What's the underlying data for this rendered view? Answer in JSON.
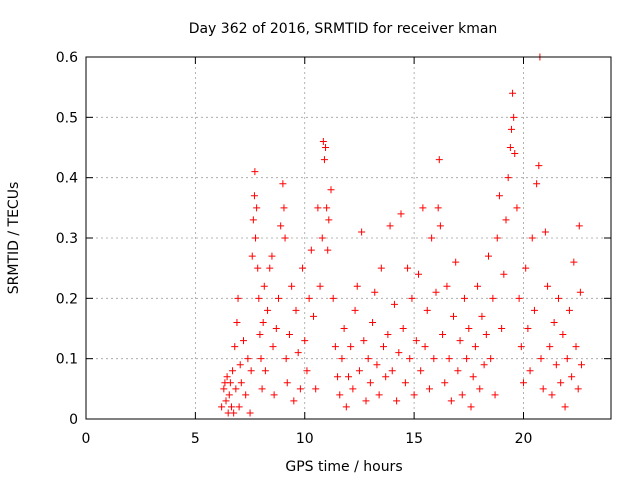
{
  "chart_data": {
    "type": "scatter",
    "title": "Day 362 of 2016, SRMTID for receiver kman",
    "xlabel": "GPS time / hours",
    "ylabel": "SRMTID / TECUs",
    "xlim": [
      0,
      24
    ],
    "ylim": [
      0,
      0.6
    ],
    "xticks": [
      0,
      5,
      10,
      15,
      20
    ],
    "yticks": [
      0,
      0.1,
      0.2,
      0.3,
      0.4,
      0.5,
      0.6
    ],
    "xtick_labels": [
      "0",
      "5",
      "10",
      "15",
      "20"
    ],
    "ytick_labels": [
      "0",
      "0.1",
      "0.2",
      "0.3",
      "0.4",
      "0.5",
      "0.6"
    ],
    "grid": true,
    "marker": "+",
    "color": "#ff0000",
    "series": [
      {
        "points": [
          [
            6.2,
            0.02
          ],
          [
            6.3,
            0.05
          ],
          [
            6.35,
            0.06
          ],
          [
            6.4,
            0.03
          ],
          [
            6.45,
            0.07
          ],
          [
            6.5,
            0.01
          ],
          [
            6.55,
            0.04
          ],
          [
            6.6,
            0.06
          ],
          [
            6.65,
            0.02
          ],
          [
            6.7,
            0.08
          ],
          [
            6.75,
            0.01
          ],
          [
            6.8,
            0.12
          ],
          [
            6.85,
            0.05
          ],
          [
            6.9,
            0.16
          ],
          [
            6.95,
            0.2
          ],
          [
            7.0,
            0.02
          ],
          [
            7.05,
            0.09
          ],
          [
            7.1,
            0.06
          ],
          [
            7.2,
            0.13
          ],
          [
            7.3,
            0.04
          ],
          [
            7.4,
            0.1
          ],
          [
            7.5,
            0.01
          ],
          [
            7.55,
            0.08
          ],
          [
            7.6,
            0.27
          ],
          [
            7.65,
            0.33
          ],
          [
            7.7,
            0.37
          ],
          [
            7.72,
            0.41
          ],
          [
            7.75,
            0.3
          ],
          [
            7.8,
            0.35
          ],
          [
            7.85,
            0.25
          ],
          [
            7.9,
            0.2
          ],
          [
            7.95,
            0.14
          ],
          [
            8.0,
            0.1
          ],
          [
            8.05,
            0.05
          ],
          [
            8.1,
            0.16
          ],
          [
            8.15,
            0.22
          ],
          [
            8.2,
            0.08
          ],
          [
            8.3,
            0.18
          ],
          [
            8.4,
            0.25
          ],
          [
            8.5,
            0.27
          ],
          [
            8.55,
            0.12
          ],
          [
            8.6,
            0.04
          ],
          [
            8.7,
            0.15
          ],
          [
            8.8,
            0.2
          ],
          [
            8.9,
            0.32
          ],
          [
            9.0,
            0.39
          ],
          [
            9.05,
            0.35
          ],
          [
            9.1,
            0.3
          ],
          [
            9.15,
            0.1
          ],
          [
            9.2,
            0.06
          ],
          [
            9.3,
            0.14
          ],
          [
            9.4,
            0.22
          ],
          [
            9.5,
            0.03
          ],
          [
            9.6,
            0.18
          ],
          [
            9.7,
            0.11
          ],
          [
            9.8,
            0.05
          ],
          [
            9.9,
            0.25
          ],
          [
            10.0,
            0.13
          ],
          [
            10.1,
            0.08
          ],
          [
            10.2,
            0.2
          ],
          [
            10.3,
            0.28
          ],
          [
            10.4,
            0.17
          ],
          [
            10.5,
            0.05
          ],
          [
            10.6,
            0.35
          ],
          [
            10.7,
            0.22
          ],
          [
            10.8,
            0.3
          ],
          [
            10.85,
            0.46
          ],
          [
            10.9,
            0.43
          ],
          [
            10.95,
            0.45
          ],
          [
            11.0,
            0.35
          ],
          [
            11.05,
            0.28
          ],
          [
            11.1,
            0.33
          ],
          [
            11.2,
            0.38
          ],
          [
            11.3,
            0.2
          ],
          [
            11.4,
            0.12
          ],
          [
            11.5,
            0.07
          ],
          [
            11.6,
            0.04
          ],
          [
            11.7,
            0.1
          ],
          [
            11.8,
            0.15
          ],
          [
            11.9,
            0.02
          ],
          [
            12.0,
            0.07
          ],
          [
            12.1,
            0.12
          ],
          [
            12.2,
            0.05
          ],
          [
            12.3,
            0.18
          ],
          [
            12.4,
            0.22
          ],
          [
            12.5,
            0.08
          ],
          [
            12.6,
            0.31
          ],
          [
            12.7,
            0.13
          ],
          [
            12.8,
            0.03
          ],
          [
            12.9,
            0.1
          ],
          [
            13.0,
            0.06
          ],
          [
            13.1,
            0.16
          ],
          [
            13.2,
            0.21
          ],
          [
            13.3,
            0.09
          ],
          [
            13.4,
            0.04
          ],
          [
            13.5,
            0.25
          ],
          [
            13.6,
            0.12
          ],
          [
            13.7,
            0.07
          ],
          [
            13.8,
            0.14
          ],
          [
            13.9,
            0.32
          ],
          [
            14.0,
            0.08
          ],
          [
            14.1,
            0.19
          ],
          [
            14.2,
            0.03
          ],
          [
            14.3,
            0.11
          ],
          [
            14.4,
            0.34
          ],
          [
            14.5,
            0.15
          ],
          [
            14.6,
            0.06
          ],
          [
            14.7,
            0.25
          ],
          [
            14.8,
            0.1
          ],
          [
            14.9,
            0.2
          ],
          [
            15.0,
            0.04
          ],
          [
            15.1,
            0.13
          ],
          [
            15.2,
            0.24
          ],
          [
            15.3,
            0.08
          ],
          [
            15.4,
            0.35
          ],
          [
            15.5,
            0.12
          ],
          [
            15.6,
            0.18
          ],
          [
            15.7,
            0.05
          ],
          [
            15.8,
            0.3
          ],
          [
            15.9,
            0.1
          ],
          [
            16.0,
            0.21
          ],
          [
            16.1,
            0.35
          ],
          [
            16.15,
            0.43
          ],
          [
            16.2,
            0.32
          ],
          [
            16.3,
            0.14
          ],
          [
            16.4,
            0.06
          ],
          [
            16.5,
            0.22
          ],
          [
            16.6,
            0.1
          ],
          [
            16.7,
            0.03
          ],
          [
            16.8,
            0.17
          ],
          [
            16.9,
            0.26
          ],
          [
            17.0,
            0.08
          ],
          [
            17.1,
            0.13
          ],
          [
            17.2,
            0.04
          ],
          [
            17.3,
            0.2
          ],
          [
            17.4,
            0.1
          ],
          [
            17.5,
            0.15
          ],
          [
            17.6,
            0.02
          ],
          [
            17.7,
            0.07
          ],
          [
            17.8,
            0.12
          ],
          [
            17.9,
            0.22
          ],
          [
            18.0,
            0.05
          ],
          [
            18.1,
            0.17
          ],
          [
            18.2,
            0.09
          ],
          [
            18.3,
            0.14
          ],
          [
            18.4,
            0.27
          ],
          [
            18.5,
            0.1
          ],
          [
            18.6,
            0.2
          ],
          [
            18.7,
            0.04
          ],
          [
            18.8,
            0.3
          ],
          [
            18.9,
            0.37
          ],
          [
            19.0,
            0.15
          ],
          [
            19.1,
            0.24
          ],
          [
            19.2,
            0.33
          ],
          [
            19.3,
            0.4
          ],
          [
            19.4,
            0.45
          ],
          [
            19.45,
            0.48
          ],
          [
            19.5,
            0.54
          ],
          [
            19.55,
            0.5
          ],
          [
            19.6,
            0.44
          ],
          [
            19.7,
            0.35
          ],
          [
            19.8,
            0.2
          ],
          [
            19.9,
            0.12
          ],
          [
            20.0,
            0.06
          ],
          [
            20.1,
            0.25
          ],
          [
            20.2,
            0.15
          ],
          [
            20.3,
            0.08
          ],
          [
            20.4,
            0.3
          ],
          [
            20.5,
            0.18
          ],
          [
            20.6,
            0.39
          ],
          [
            20.7,
            0.42
          ],
          [
            20.75,
            0.6
          ],
          [
            20.8,
            0.1
          ],
          [
            20.9,
            0.05
          ],
          [
            21.0,
            0.31
          ],
          [
            21.1,
            0.22
          ],
          [
            21.2,
            0.12
          ],
          [
            21.3,
            0.04
          ],
          [
            21.4,
            0.16
          ],
          [
            21.5,
            0.09
          ],
          [
            21.6,
            0.2
          ],
          [
            21.7,
            0.06
          ],
          [
            21.8,
            0.14
          ],
          [
            21.9,
            0.02
          ],
          [
            22.0,
            0.1
          ],
          [
            22.1,
            0.18
          ],
          [
            22.2,
            0.07
          ],
          [
            22.3,
            0.26
          ],
          [
            22.4,
            0.12
          ],
          [
            22.5,
            0.05
          ],
          [
            22.55,
            0.32
          ],
          [
            22.6,
            0.21
          ],
          [
            22.65,
            0.09
          ]
        ]
      }
    ]
  }
}
